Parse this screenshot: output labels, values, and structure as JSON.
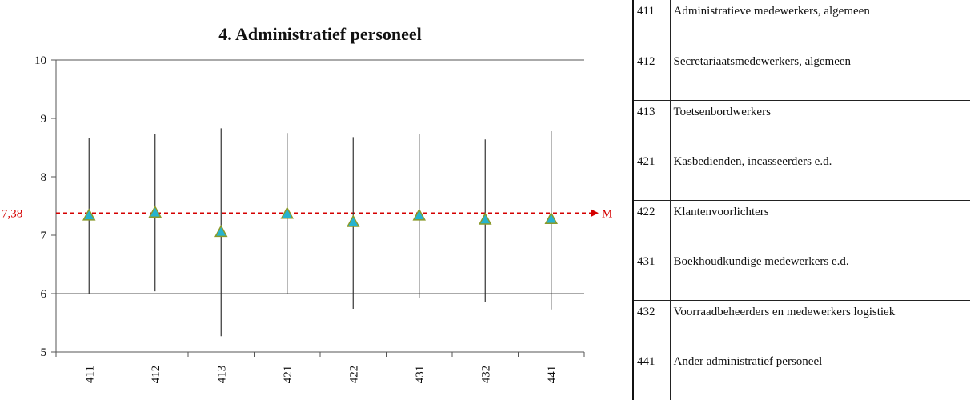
{
  "chart_data": {
    "type": "scatter",
    "title": "4. Administratief personeel",
    "categories": [
      "411",
      "412",
      "413",
      "421",
      "422",
      "431",
      "432",
      "441"
    ],
    "series": [
      {
        "values": [
          7.33,
          7.38,
          7.05,
          7.36,
          7.22,
          7.33,
          7.26,
          7.27
        ],
        "low": [
          6.0,
          6.04,
          5.27,
          6.0,
          5.74,
          5.93,
          5.86,
          5.73
        ],
        "high": [
          8.67,
          8.73,
          8.83,
          8.75,
          8.68,
          8.73,
          8.64,
          8.78
        ]
      }
    ],
    "ylim": [
      5,
      10
    ],
    "yticks": [
      "5",
      "6",
      "7",
      "8",
      "9",
      "10"
    ],
    "grid": false,
    "reference_line": {
      "value": 7.38,
      "label": "7,38",
      "end_label": "M"
    },
    "colors": {
      "marker_fill": "#26b3cf",
      "marker_stroke": "#8a9a2a",
      "whisker": "#333333",
      "reference": "#d40000",
      "axis": "#555555"
    }
  },
  "legend": {
    "rows": [
      {
        "code": "411",
        "label": "Administratieve medewerkers, algemeen"
      },
      {
        "code": "412",
        "label": "Secretariaatsmedewerkers, algemeen"
      },
      {
        "code": "413",
        "label": "Toetsenbordwerkers"
      },
      {
        "code": "421",
        "label": "Kasbedienden, incasseerders e.d."
      },
      {
        "code": "422",
        "label": "Klantenvoorlichters"
      },
      {
        "code": "431",
        "label": "Boekhoudkundige medewerkers e.d."
      },
      {
        "code": "432",
        "label": "Voorraadbeheerders en medewerkers logistiek"
      },
      {
        "code": "441",
        "label": "Ander administratief personeel"
      }
    ]
  }
}
